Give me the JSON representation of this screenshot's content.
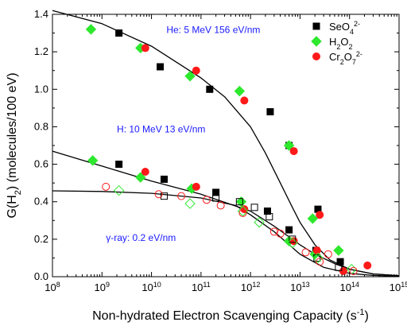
{
  "chart_data": {
    "type": "scatter",
    "xlabel": "Non-hydrated Electron Scavenging Capacity (s",
    "xlabel_sup": "-1",
    "xlabel_end": ")",
    "ylabel": "G(H",
    "ylabel_sub": "2",
    "ylabel_end": ") (molecules/100 eV)",
    "x_scale": "log",
    "xlim": [
      100000000.0,
      1000000000000000.0
    ],
    "ylim": [
      0,
      1.4
    ],
    "x_ticks": [
      {
        "value": 100000000.0,
        "base": "10",
        "exp": "8"
      },
      {
        "value": 1000000000.0,
        "base": "10",
        "exp": "9"
      },
      {
        "value": 10000000000.0,
        "base": "10",
        "exp": "10"
      },
      {
        "value": 100000000000.0,
        "base": "10",
        "exp": "11"
      },
      {
        "value": 1000000000000.0,
        "base": "10",
        "exp": "12"
      },
      {
        "value": 10000000000000.0,
        "base": "10",
        "exp": "13"
      },
      {
        "value": 100000000000000.0,
        "base": "10",
        "exp": "14"
      },
      {
        "value": 1000000000000000.0,
        "base": "10",
        "exp": "15"
      }
    ],
    "y_ticks": [
      {
        "value": 0.0,
        "label": "0.0"
      },
      {
        "value": 0.2,
        "label": "0.2"
      },
      {
        "value": 0.4,
        "label": "0.4"
      },
      {
        "value": 0.6,
        "label": "0.6"
      },
      {
        "value": 0.8,
        "label": "0.8"
      },
      {
        "value": 1.0,
        "label": "1.0"
      },
      {
        "value": 1.2,
        "label": "1.2"
      },
      {
        "value": 1.4,
        "label": "1.4"
      }
    ],
    "grid": false,
    "legend_position": "top-right",
    "legend": [
      {
        "base": "SeO",
        "sub": "4",
        "sup": "2-",
        "marker": "square",
        "color": "#000000"
      },
      {
        "base": "H",
        "sub": "2",
        "mid": "O",
        "sub2": "2",
        "marker": "diamond",
        "color": "#2ee82e"
      },
      {
        "base": "Cr",
        "sub": "2",
        "mid": "O",
        "sub2": "7",
        "sup": "2-",
        "marker": "circle",
        "color": "#ff1a1a"
      }
    ],
    "annotations": [
      {
        "text": "He: 5 MeV 156 eV/nm",
        "x": 20000000000.0,
        "y": 1.3
      },
      {
        "text": "H: 10 MeV 13 eV/nm",
        "x": 2000000000.0,
        "y": 0.77
      },
      {
        "text": "γ-ray: 0.2 eV/nm",
        "x": 1200000000.0,
        "y": 0.19
      }
    ],
    "series": [
      {
        "name": "He: 5 MeV 156 eV/nm",
        "fit_curve": {
          "x": [
            100000000.0,
            1000000000.0,
            10000000000.0,
            100000000000.0,
            300000000000.0,
            1000000000000.0,
            2000000000000.0,
            4000000000000.0,
            7000000000000.0,
            10000000000000.0,
            20000000000000.0,
            40000000000000.0,
            100000000000000.0,
            300000000000000.0,
            1000000000000000.0
          ],
          "y": [
            1.42,
            1.35,
            1.23,
            1.06,
            0.96,
            0.8,
            0.66,
            0.5,
            0.37,
            0.29,
            0.17,
            0.09,
            0.04,
            0.015,
            0.005
          ]
        },
        "points": [
          {
            "m": "square",
            "c": "#000000",
            "filled": true,
            "x": 2200000000.0,
            "y": 1.3
          },
          {
            "m": "square",
            "c": "#000000",
            "filled": true,
            "x": 15000000000.0,
            "y": 1.12
          },
          {
            "m": "square",
            "c": "#000000",
            "filled": true,
            "x": 150000000000.0,
            "y": 1.0
          },
          {
            "m": "square",
            "c": "#000000",
            "filled": true,
            "x": 2500000000000.0,
            "y": 0.88
          },
          {
            "m": "square",
            "c": "#000000",
            "filled": true,
            "x": 6000000000000.0,
            "y": 0.7
          },
          {
            "m": "square",
            "c": "#000000",
            "filled": true,
            "x": 23000000000000.0,
            "y": 0.36
          },
          {
            "m": "diamond",
            "c": "#2ee82e",
            "filled": true,
            "x": 600000000.0,
            "y": 1.32
          },
          {
            "m": "diamond",
            "c": "#2ee82e",
            "filled": true,
            "x": 6000000000.0,
            "y": 1.22
          },
          {
            "m": "diamond",
            "c": "#2ee82e",
            "filled": true,
            "x": 60000000000.0,
            "y": 1.07
          },
          {
            "m": "diamond",
            "c": "#2ee82e",
            "filled": true,
            "x": 600000000000.0,
            "y": 0.99
          },
          {
            "m": "diamond",
            "c": "#2ee82e",
            "filled": true,
            "x": 6000000000000.0,
            "y": 0.7
          },
          {
            "m": "diamond",
            "c": "#2ee82e",
            "filled": true,
            "x": 18000000000000.0,
            "y": 0.31
          },
          {
            "m": "circle",
            "c": "#ff1a1a",
            "filled": true,
            "x": 7500000000.0,
            "y": 1.22
          },
          {
            "m": "circle",
            "c": "#ff1a1a",
            "filled": true,
            "x": 80000000000.0,
            "y": 1.1
          },
          {
            "m": "circle",
            "c": "#ff1a1a",
            "filled": true,
            "x": 750000000000.0,
            "y": 0.94
          },
          {
            "m": "circle",
            "c": "#ff1a1a",
            "filled": true,
            "x": 7500000000000.0,
            "y": 0.67
          },
          {
            "m": "circle",
            "c": "#ff1a1a",
            "filled": true,
            "x": 25000000000000.0,
            "y": 0.33
          }
        ]
      },
      {
        "name": "H: 10 MeV 13 eV/nm",
        "fit_curve": {
          "x": [
            100000000.0,
            1000000000.0,
            10000000000.0,
            100000000000.0,
            1000000000000.0,
            3000000000000.0,
            10000000000000.0,
            20000000000000.0,
            50000000000000.0,
            100000000000000.0,
            300000000000000.0,
            1000000000000000.0
          ],
          "y": [
            0.67,
            0.59,
            0.51,
            0.44,
            0.35,
            0.27,
            0.17,
            0.12,
            0.07,
            0.04,
            0.015,
            0.005
          ]
        },
        "points": [
          {
            "m": "square",
            "c": "#000000",
            "filled": true,
            "x": 2200000000.0,
            "y": 0.6
          },
          {
            "m": "square",
            "c": "#000000",
            "filled": true,
            "x": 18000000000.0,
            "y": 0.52
          },
          {
            "m": "square",
            "c": "#000000",
            "filled": true,
            "x": 200000000000.0,
            "y": 0.45
          },
          {
            "m": "square",
            "c": "#000000",
            "filled": true,
            "x": 2200000000000.0,
            "y": 0.35
          },
          {
            "m": "square",
            "c": "#000000",
            "filled": true,
            "x": 6000000000000.0,
            "y": 0.25
          },
          {
            "m": "square",
            "c": "#000000",
            "filled": true,
            "x": 21000000000000.0,
            "y": 0.14
          },
          {
            "m": "square",
            "c": "#000000",
            "filled": true,
            "x": 65000000000000.0,
            "y": 0.08
          },
          {
            "m": "diamond",
            "c": "#2ee82e",
            "filled": true,
            "x": 650000000.0,
            "y": 0.62
          },
          {
            "m": "diamond",
            "c": "#2ee82e",
            "filled": true,
            "x": 6000000000.0,
            "y": 0.53
          },
          {
            "m": "diamond",
            "c": "#2ee82e",
            "filled": true,
            "x": 65000000000.0,
            "y": 0.47
          },
          {
            "m": "diamond",
            "c": "#2ee82e",
            "filled": true,
            "x": 650000000000.0,
            "y": 0.4
          },
          {
            "m": "diamond",
            "c": "#2ee82e",
            "filled": true,
            "x": 6000000000000.0,
            "y": 0.19
          },
          {
            "m": "diamond",
            "c": "#2ee82e",
            "filled": true,
            "x": 20000000000000.0,
            "y": 0.12
          },
          {
            "m": "diamond",
            "c": "#2ee82e",
            "filled": true,
            "x": 60000000000000.0,
            "y": 0.14
          },
          {
            "m": "circle",
            "c": "#ff1a1a",
            "filled": true,
            "x": 7500000000.0,
            "y": 0.56
          },
          {
            "m": "circle",
            "c": "#ff1a1a",
            "filled": true,
            "x": 80000000000.0,
            "y": 0.48
          },
          {
            "m": "circle",
            "c": "#ff1a1a",
            "filled": true,
            "x": 750000000000.0,
            "y": 0.36
          },
          {
            "m": "circle",
            "c": "#ff1a1a",
            "filled": true,
            "x": 7500000000000.0,
            "y": 0.19
          },
          {
            "m": "circle",
            "c": "#ff1a1a",
            "filled": true,
            "x": 22000000000000.0,
            "y": 0.14
          },
          {
            "m": "circle",
            "c": "#ff1a1a",
            "filled": true,
            "x": 75000000000000.0,
            "y": 0.03
          },
          {
            "m": "circle",
            "c": "#ff1a1a",
            "filled": true,
            "x": 230000000000000.0,
            "y": 0.06
          }
        ]
      },
      {
        "name": "γ-ray: 0.2 eV/nm",
        "fit_curve": {
          "x": [
            100000000.0,
            1000000000.0,
            10000000000.0,
            100000000000.0,
            500000000000.0,
            1000000000000.0,
            3000000000000.0,
            10000000000000.0,
            30000000000000.0,
            100000000000000.0,
            300000000000000.0,
            1000000000000000.0
          ],
          "y": [
            0.458,
            0.455,
            0.445,
            0.42,
            0.38,
            0.33,
            0.24,
            0.12,
            0.05,
            0.018,
            0.007,
            0.002
          ]
        },
        "points": [
          {
            "m": "square",
            "c": "#000000",
            "filled": false,
            "x": 18000000000.0,
            "y": 0.43
          },
          {
            "m": "square",
            "c": "#000000",
            "filled": false,
            "x": 200000000000.0,
            "y": 0.42
          },
          {
            "m": "square",
            "c": "#000000",
            "filled": false,
            "x": 600000000000.0,
            "y": 0.4
          },
          {
            "m": "square",
            "c": "#000000",
            "filled": false,
            "x": 1200000000000.0,
            "y": 0.37
          },
          {
            "m": "square",
            "c": "#000000",
            "filled": false,
            "x": 2400000000000.0,
            "y": 0.32
          },
          {
            "m": "square",
            "c": "#000000",
            "filled": false,
            "x": 7000000000000.0,
            "y": 0.2
          },
          {
            "m": "square",
            "c": "#000000",
            "filled": false,
            "x": 22000000000000.0,
            "y": 0.1
          },
          {
            "m": "square",
            "c": "#000000",
            "filled": false,
            "x": 60000000000000.0,
            "y": 0.05
          },
          {
            "m": "diamond",
            "c": "#2ee82e",
            "filled": false,
            "x": 2200000000.0,
            "y": 0.46
          },
          {
            "m": "diamond",
            "c": "#2ee82e",
            "filled": false,
            "x": 60000000000.0,
            "y": 0.39
          },
          {
            "m": "diamond",
            "c": "#2ee82e",
            "filled": false,
            "x": 700000000000.0,
            "y": 0.35
          },
          {
            "m": "diamond",
            "c": "#2ee82e",
            "filled": false,
            "x": 1500000000000.0,
            "y": 0.29
          },
          {
            "m": "diamond",
            "c": "#2ee82e",
            "filled": false,
            "x": 7000000000000.0,
            "y": 0.18
          },
          {
            "m": "diamond",
            "c": "#2ee82e",
            "filled": false,
            "x": 23000000000000.0,
            "y": 0.1
          },
          {
            "m": "diamond",
            "c": "#2ee82e",
            "filled": false,
            "x": 110000000000000.0,
            "y": 0.04
          },
          {
            "m": "circle",
            "c": "#ff1a1a",
            "filled": false,
            "x": 1200000000.0,
            "y": 0.48
          },
          {
            "m": "circle",
            "c": "#ff1a1a",
            "filled": false,
            "x": 14000000000.0,
            "y": 0.44
          },
          {
            "m": "circle",
            "c": "#ff1a1a",
            "filled": false,
            "x": 40000000000.0,
            "y": 0.43
          },
          {
            "m": "circle",
            "c": "#ff1a1a",
            "filled": false,
            "x": 130000000000.0,
            "y": 0.41
          },
          {
            "m": "circle",
            "c": "#ff1a1a",
            "filled": false,
            "x": 250000000000.0,
            "y": 0.38
          },
          {
            "m": "circle",
            "c": "#ff1a1a",
            "filled": false,
            "x": 700000000000.0,
            "y": 0.34
          },
          {
            "m": "circle",
            "c": "#ff1a1a",
            "filled": false,
            "x": 3000000000000.0,
            "y": 0.24
          },
          {
            "m": "circle",
            "c": "#ff1a1a",
            "filled": false,
            "x": 4000000000000.0,
            "y": 0.23
          },
          {
            "m": "circle",
            "c": "#ff1a1a",
            "filled": false,
            "x": 13000000000000.0,
            "y": 0.13
          },
          {
            "m": "circle",
            "c": "#ff1a1a",
            "filled": false,
            "x": 25000000000000.0,
            "y": 0.08
          },
          {
            "m": "circle",
            "c": "#ff1a1a",
            "filled": false,
            "x": 37000000000000.0,
            "y": 0.12
          },
          {
            "m": "circle",
            "c": "#ff1a1a",
            "filled": false,
            "x": 120000000000000.0,
            "y": 0.03
          }
        ]
      }
    ]
  }
}
